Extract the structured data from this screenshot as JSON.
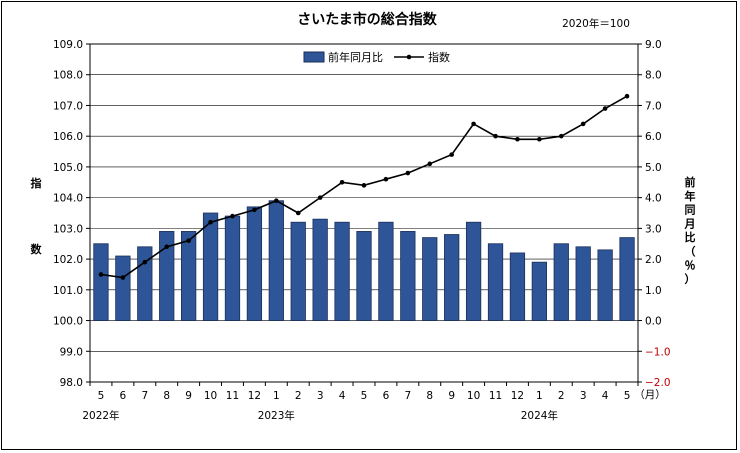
{
  "chart_data": {
    "type": "bar",
    "title": "さいたま市の総合指数",
    "base_note": "2020年＝100",
    "categories": [
      "5",
      "6",
      "7",
      "8",
      "9",
      "10",
      "11",
      "12",
      "1",
      "2",
      "3",
      "4",
      "5",
      "6",
      "7",
      "8",
      "9",
      "10",
      "11",
      "12",
      "1",
      "2",
      "3",
      "4",
      "5"
    ],
    "x_unit": "（月）",
    "year_labels": [
      {
        "index": 0,
        "text": "2022年"
      },
      {
        "index": 8,
        "text": "2023年"
      },
      {
        "index": 20,
        "text": "2024年"
      }
    ],
    "left_axis": {
      "label": "指数",
      "min": 98.0,
      "max": 109.0,
      "step": 1.0,
      "ticks": [
        "98.0",
        "99.0",
        "100.0",
        "101.0",
        "102.0",
        "103.0",
        "104.0",
        "105.0",
        "106.0",
        "107.0",
        "108.0",
        "109.0"
      ]
    },
    "right_axis": {
      "label": "前年同月比（％）",
      "min": -2.0,
      "max": 9.0,
      "step": 1.0,
      "ticks": [
        "−2.0",
        "−1.0",
        "0.0",
        "1.0",
        "2.0",
        "3.0",
        "4.0",
        "5.0",
        "6.0",
        "7.0",
        "8.0",
        "9.0"
      ]
    },
    "series": [
      {
        "name": "前年同月比",
        "type": "bar",
        "axis": "right",
        "values": [
          2.5,
          2.1,
          2.4,
          2.9,
          2.9,
          3.5,
          3.4,
          3.7,
          3.9,
          3.2,
          3.3,
          3.2,
          2.9,
          3.2,
          2.9,
          2.7,
          2.8,
          3.2,
          2.5,
          2.2,
          1.9,
          2.5,
          2.4,
          2.3,
          2.7
        ]
      },
      {
        "name": "指数",
        "type": "line",
        "axis": "left",
        "values": [
          101.5,
          101.4,
          101.9,
          102.4,
          102.6,
          103.2,
          103.4,
          103.6,
          103.9,
          103.5,
          104.0,
          104.5,
          104.4,
          104.6,
          104.8,
          105.1,
          105.4,
          106.4,
          106.0,
          105.9,
          105.9,
          106.0,
          106.4,
          106.9,
          107.3
        ]
      }
    ],
    "colors": {
      "bar_fill": "#2e5597",
      "bar_stroke": "#1b2f5a",
      "line": "#000000",
      "negative_tick": "#c00000"
    },
    "grid": true,
    "legend_position": "top-center"
  }
}
